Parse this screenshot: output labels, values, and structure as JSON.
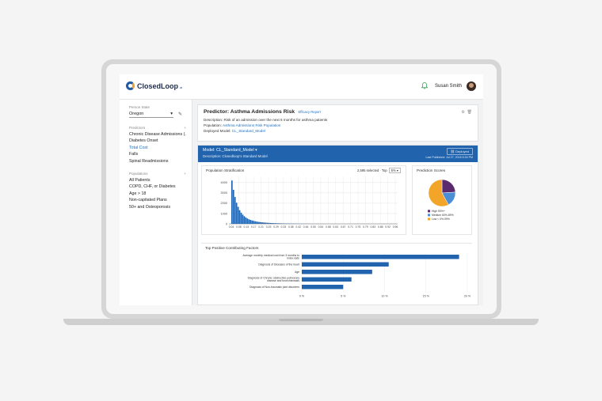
{
  "header": {
    "logo_text": "ClosedLoop",
    "logo_suffix": ".ai",
    "user_name": "Susan Smith"
  },
  "sidebar": {
    "person_state_label": "Person State",
    "person_state_value": "Oregon",
    "predictors_label": "Predictors",
    "predictors": [
      {
        "label": "Chronic Disease Admissions (..."
      },
      {
        "label": "Diabetes Onset"
      },
      {
        "label": "Total Cost",
        "active": true
      },
      {
        "label": "Falls"
      },
      {
        "label": "Spinal Readmissions"
      }
    ],
    "populations_label": "Populations",
    "populations": [
      {
        "label": "All Patients"
      },
      {
        "label": "COPD, CHF, or Diabetes"
      },
      {
        "label": "Age > 18"
      },
      {
        "label": "Non-capitated Plans"
      },
      {
        "label": "50+ and Osteoporosis"
      }
    ]
  },
  "predictor": {
    "title": "Predictor: Asthma Admissions Risk",
    "link": "Efficacy Report",
    "description_label": "Description:",
    "description": "Risk of an admission over the next 6 months for asthma patients",
    "population_label": "Population:",
    "population": "Asthma Admissions Risk Population",
    "deployed_label": "Deployed Model:",
    "deployed_model": "CL_Standard_Model"
  },
  "model": {
    "name_line": "Model: CL_Standard_Model",
    "description_line": "Description: Closedloop's Standard Model",
    "deployed_button": "Deployed",
    "last_published": "Last Published: Jul 27, 2018 6:34 PM"
  },
  "stratification": {
    "title": "Population Stratification",
    "selected_text": "2,595 selected · Top",
    "top_value": "5%"
  },
  "prediction_scores": {
    "title": "Prediction Scores"
  },
  "factors": {
    "title": "Top Positive Contributing Factors"
  },
  "chart_data": [
    {
      "type": "bar",
      "title": "Population Stratification",
      "x_ticks": [
        "0.04",
        "0.08",
        "0.13",
        "0.17",
        "0.21",
        "0.25",
        "0.29",
        "0.33",
        "0.38",
        "0.42",
        "0.46",
        "0.50",
        "0.54",
        "0.58",
        "0.63",
        "0.67",
        "0.71",
        "0.75",
        "0.79",
        "0.83",
        "0.88",
        "0.92",
        "0.96"
      ],
      "y_ticks": [
        "0",
        "1000",
        "2000",
        "3000",
        "4000"
      ],
      "ylim": [
        0,
        4600
      ],
      "values": [
        4200,
        3300,
        2600,
        2050,
        1650,
        1320,
        1080,
        890,
        740,
        620,
        520,
        440,
        380,
        330,
        290,
        250,
        220,
        195,
        175,
        155,
        140,
        125,
        112,
        100,
        90,
        82,
        74,
        67,
        60,
        55,
        50,
        45,
        41,
        37,
        34,
        31,
        28,
        25,
        22,
        20,
        18,
        16,
        14,
        12,
        11,
        10,
        9,
        8,
        7,
        6,
        5,
        5,
        4,
        4,
        3,
        3,
        3,
        2,
        2,
        2
      ],
      "grid": true
    },
    {
      "type": "pie",
      "title": "Prediction Scores",
      "labels": [
        "High 90%+",
        "Medium 60%-89%",
        "Low < 0%-59%"
      ],
      "values": [
        24,
        18,
        58
      ],
      "colors": [
        "#5b2a6e",
        "#4a8ed6",
        "#f2a529"
      ]
    },
    {
      "type": "bar",
      "orientation": "horizontal",
      "title": "Top Positive Contributing Factors",
      "categories": [
        "Average monthly medical cost from 3 months to index date",
        "Diagnosis of Diseases of the heart",
        "Age",
        "Diagnosis of Chronic obstructive pulmonary disease and bronchiectasis",
        "Diagnosis of Non-traumatic joint disorders"
      ],
      "values": [
        19.0,
        10.5,
        8.5,
        6.0,
        5.0
      ],
      "x_ticks": [
        "0 %",
        "5 %",
        "10 %",
        "15 %",
        "20 %"
      ],
      "xlim": [
        0,
        20
      ],
      "color": "#2164ad"
    }
  ]
}
